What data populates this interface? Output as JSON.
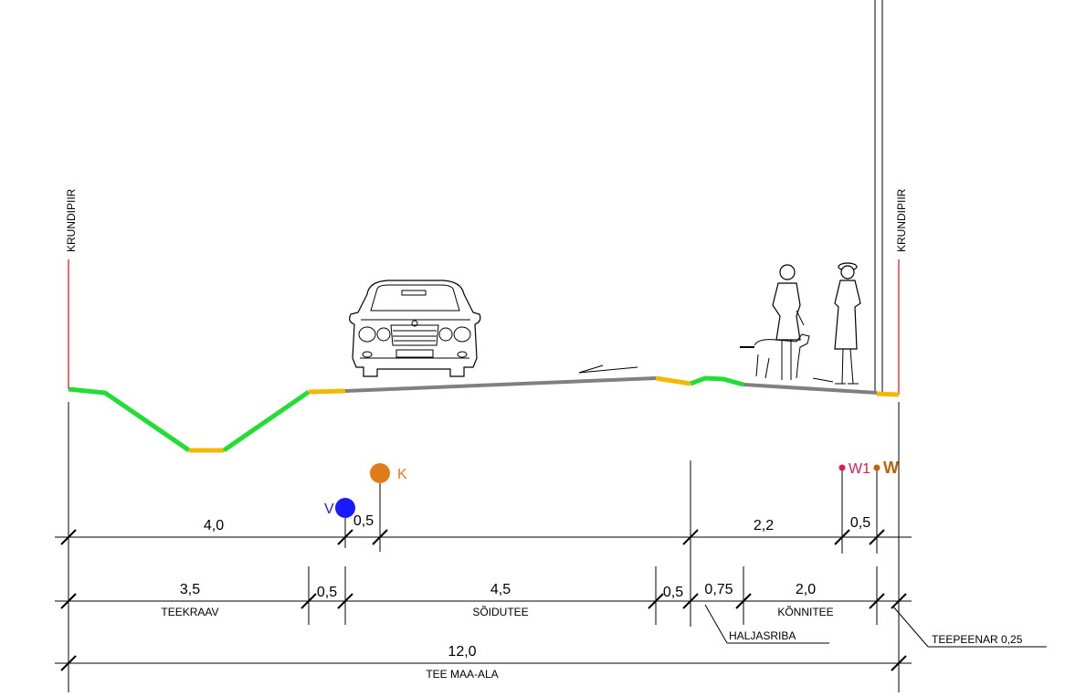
{
  "boundary_label_left": "KRUNDIPIIR",
  "boundary_label_right": "KRUNDIPIIR",
  "utilities": {
    "v_label": "V",
    "k_label": "K",
    "w1_label": "W1",
    "w_label": "W"
  },
  "dims_row1": {
    "d1": "4,0",
    "d2": "0,5",
    "d3": "2,2",
    "d4": "0,5"
  },
  "dims_row2": {
    "d1": "3,5",
    "d1_name": "TEEKRAAV",
    "d2": "0,5",
    "d3": "4,5",
    "d3_name": "SÕIDUTEE",
    "d4": "0,5",
    "d5": "0,75",
    "d6": "2,0",
    "d6_name": "KÕNNITEE"
  },
  "callouts": {
    "grass_strip": "HALJASRIBA",
    "shoulder": "TEEPEENAR 0,25"
  },
  "dims_row3": {
    "total": "12,0",
    "total_name": "TEE MAA-ALA"
  },
  "colors": {
    "grass": "#22dd33",
    "gravel": "#f5b800",
    "asphalt": "#808080",
    "boundary": "#ff0000",
    "water": "#1a1aff",
    "sewer": "#e07b1a",
    "w1": "#e8174a",
    "w": "#b8640a"
  }
}
